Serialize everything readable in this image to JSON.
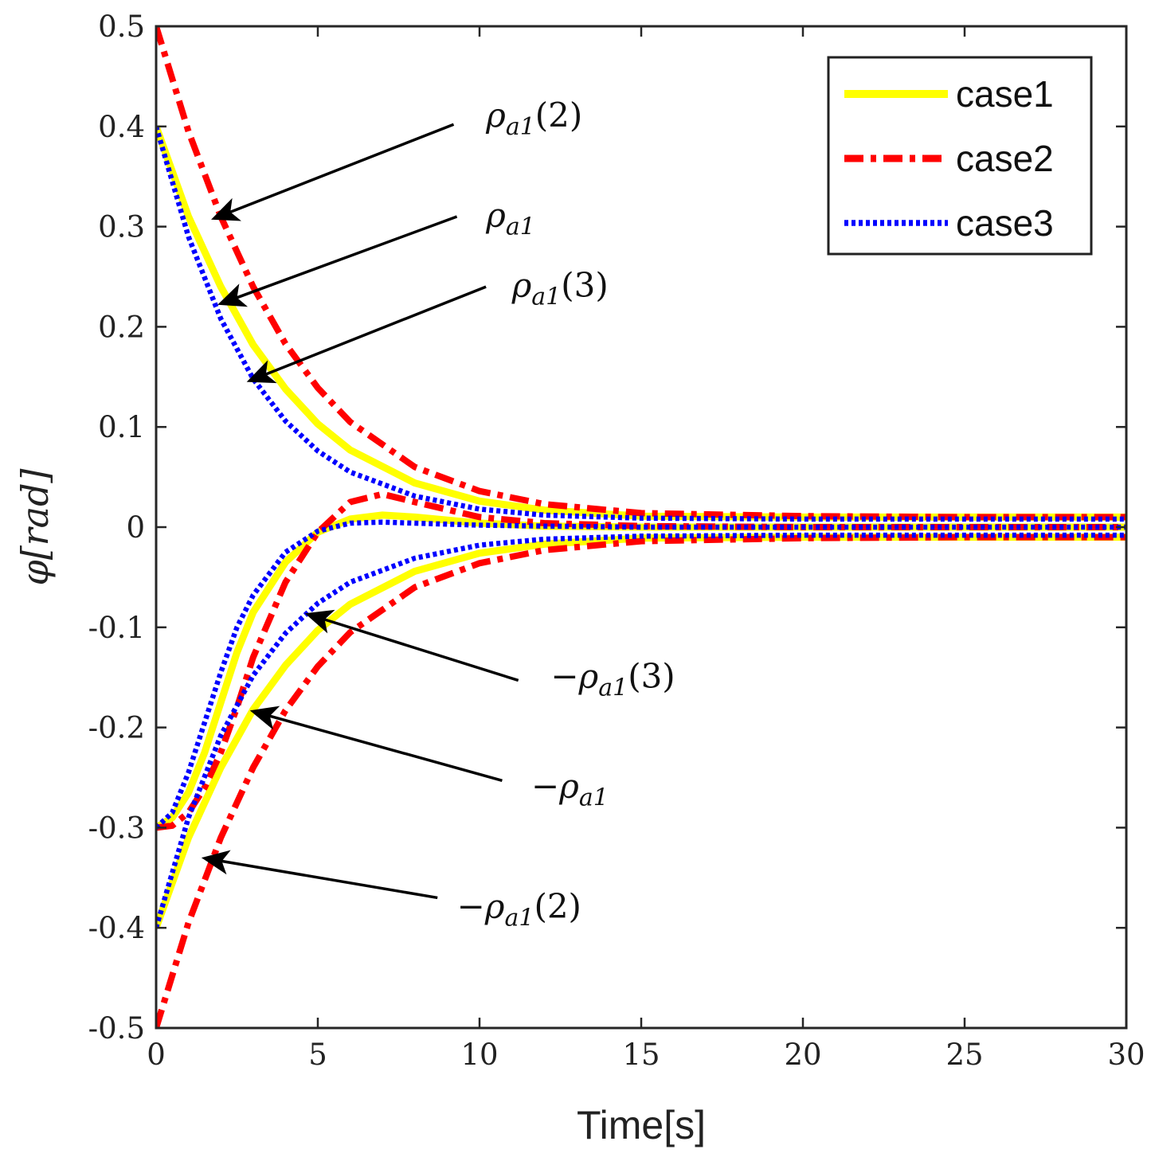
{
  "chart_data": {
    "type": "line",
    "title": "",
    "xlabel": "Time[s]",
    "ylabel": "φ[rad]",
    "xlim": [
      0,
      30
    ],
    "ylim": [
      -0.5,
      0.5
    ],
    "xticks": [
      0,
      5,
      10,
      15,
      20,
      25,
      30
    ],
    "xtick_labels": [
      "0",
      "5",
      "10",
      "15",
      "20",
      "25",
      "30"
    ],
    "yticks": [
      0.5,
      0.4,
      0.3,
      0.2,
      0.1,
      0,
      -0.1,
      -0.2,
      -0.3,
      -0.4,
      -0.5
    ],
    "ytick_labels": [
      "0.5",
      "0.4",
      "0.3",
      "0.2",
      "0.1",
      "0",
      "-0.1",
      "-0.2",
      "-0.3",
      "-0.4",
      "-0.5"
    ],
    "grid": false,
    "legend_position": "top-right",
    "series": [
      {
        "name": "case1",
        "color": "#ffff00",
        "style": "solid",
        "curves": [
          {
            "x": [
              0,
              1,
              2,
              3,
              4,
              5,
              6,
              8,
              10,
              12,
              15,
              20,
              25,
              30
            ],
            "y": [
              0.4,
              0.31,
              0.24,
              0.182,
              0.138,
              0.103,
              0.077,
              0.044,
              0.026,
              0.017,
              0.011,
              0.01,
              0.01,
              0.01
            ]
          },
          {
            "x": [
              0,
              1,
              2,
              3,
              4,
              5,
              6,
              8,
              10,
              12,
              15,
              20,
              25,
              30
            ],
            "y": [
              -0.4,
              -0.31,
              -0.24,
              -0.182,
              -0.138,
              -0.103,
              -0.077,
              -0.044,
              -0.026,
              -0.017,
              -0.011,
              -0.01,
              -0.01,
              -0.01
            ]
          },
          {
            "x": [
              0,
              0.5,
              1,
              1.5,
              2,
              2.5,
              3,
              4,
              5,
              6,
              7,
              8,
              10,
              12,
              15,
              20,
              30
            ],
            "y": [
              -0.3,
              -0.29,
              -0.265,
              -0.225,
              -0.175,
              -0.125,
              -0.085,
              -0.035,
              -0.005,
              0.008,
              0.012,
              0.01,
              0.004,
              0.001,
              0,
              0,
              0
            ]
          }
        ]
      },
      {
        "name": "case2",
        "color": "#ff0000",
        "style": "dashdot",
        "curves": [
          {
            "x": [
              0,
              1,
              2,
              3,
              4,
              5,
              6,
              8,
              10,
              12,
              15,
              20,
              25,
              30
            ],
            "y": [
              0.5,
              0.395,
              0.31,
              0.24,
              0.183,
              0.139,
              0.105,
              0.06,
              0.036,
              0.023,
              0.014,
              0.011,
              0.01,
              0.01
            ]
          },
          {
            "x": [
              0,
              1,
              2,
              3,
              4,
              5,
              6,
              8,
              10,
              12,
              15,
              20,
              25,
              30
            ],
            "y": [
              -0.5,
              -0.395,
              -0.31,
              -0.24,
              -0.183,
              -0.139,
              -0.105,
              -0.06,
              -0.036,
              -0.023,
              -0.014,
              -0.011,
              -0.01,
              -0.01
            ]
          },
          {
            "x": [
              0,
              0.5,
              1,
              1.5,
              2,
              2.5,
              3,
              4,
              5,
              6,
              7,
              8,
              10,
              12,
              15,
              20,
              30
            ],
            "y": [
              -0.3,
              -0.298,
              -0.285,
              -0.26,
              -0.225,
              -0.18,
              -0.13,
              -0.055,
              -0.005,
              0.025,
              0.033,
              0.025,
              0.01,
              0.004,
              0.001,
              0,
              0
            ]
          }
        ]
      },
      {
        "name": "case3",
        "color": "#0000ff",
        "style": "dotted",
        "curves": [
          {
            "x": [
              0,
              1,
              2,
              3,
              4,
              5,
              6,
              8,
              10,
              12,
              15,
              20,
              25,
              30
            ],
            "y": [
              0.4,
              0.29,
              0.208,
              0.148,
              0.106,
              0.076,
              0.055,
              0.031,
              0.018,
              0.012,
              0.009,
              0.008,
              0.008,
              0.008
            ]
          },
          {
            "x": [
              0,
              1,
              2,
              3,
              4,
              5,
              6,
              8,
              10,
              12,
              15,
              20,
              25,
              30
            ],
            "y": [
              -0.4,
              -0.29,
              -0.208,
              -0.148,
              -0.106,
              -0.076,
              -0.055,
              -0.031,
              -0.018,
              -0.012,
              -0.009,
              -0.008,
              -0.008,
              -0.008
            ]
          },
          {
            "x": [
              0,
              0.5,
              1,
              1.5,
              2,
              2.5,
              3,
              4,
              5,
              6,
              7,
              8,
              10,
              12,
              15,
              20,
              30
            ],
            "y": [
              -0.3,
              -0.285,
              -0.245,
              -0.195,
              -0.145,
              -0.1,
              -0.068,
              -0.025,
              -0.004,
              0.004,
              0.005,
              0.004,
              0.002,
              0.001,
              0,
              0,
              0
            ]
          }
        ]
      }
    ],
    "annotations": [
      {
        "label": "ρa1(2)",
        "main": "ρ",
        "sub": "a1",
        "suffix": "(2)",
        "text_at": [
          10.2,
          0.4
        ],
        "arrow_from": [
          9.2,
          0.402
        ],
        "arrow_to": [
          1.7,
          0.307
        ]
      },
      {
        "label": "ρa1",
        "main": "ρ",
        "sub": "a1",
        "suffix": "",
        "text_at": [
          10.2,
          0.3
        ],
        "arrow_from": [
          9.3,
          0.31
        ],
        "arrow_to": [
          1.9,
          0.222
        ]
      },
      {
        "label": "ρa1(3)",
        "main": "ρ",
        "sub": "a1",
        "suffix": "(3)",
        "text_at": [
          11.0,
          0.23
        ],
        "arrow_from": [
          10.2,
          0.24
        ],
        "arrow_to": [
          2.8,
          0.145
        ]
      },
      {
        "label": "−ρa1(3)",
        "main": "−ρ",
        "sub": "a1",
        "suffix": "(3)",
        "text_at": [
          12.2,
          -0.16
        ],
        "arrow_from": [
          11.2,
          -0.153
        ],
        "arrow_to": [
          4.6,
          -0.086
        ]
      },
      {
        "label": "−ρa1",
        "main": "−ρ",
        "sub": "a1",
        "suffix": "",
        "text_at": [
          11.6,
          -0.27
        ],
        "arrow_from": [
          10.7,
          -0.253
        ],
        "arrow_to": [
          2.9,
          -0.183
        ]
      },
      {
        "label": "−ρa1(2)",
        "main": "−ρ",
        "sub": "a1",
        "suffix": "(2)",
        "text_at": [
          9.3,
          -0.39
        ],
        "arrow_from": [
          8.7,
          -0.37
        ],
        "arrow_to": [
          1.4,
          -0.33
        ]
      }
    ]
  }
}
